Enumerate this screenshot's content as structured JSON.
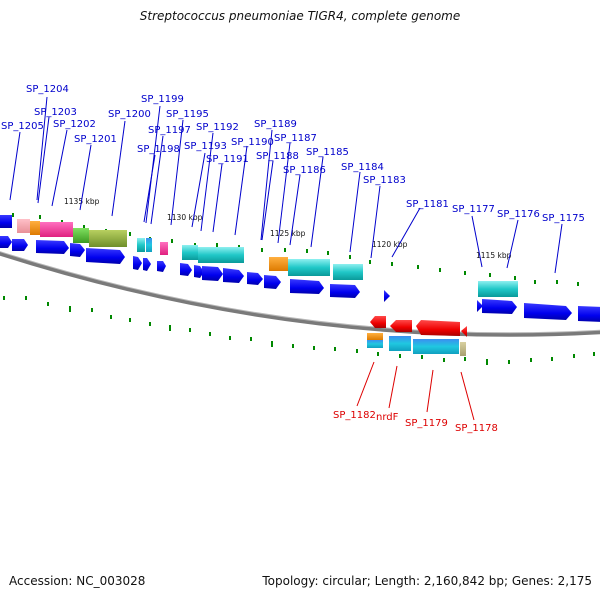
{
  "title": "Streptococcus pneumoniae TIGR4, complete genome",
  "footer": {
    "accession": "Accession: NC_003028",
    "summary": "Topology: circular; Length: 2,160,842 bp; Genes: 2,175"
  },
  "tick_labels": [
    "1135 kbp",
    "1130 kbp",
    "1125 kbp",
    "1120 kbp",
    "1115 kbp"
  ],
  "forward_gene_labels": [
    "SP_1204",
    "SP_1203",
    "SP_1205",
    "SP_1202",
    "SP_1201",
    "SP_1200",
    "SP_1199",
    "SP_1195",
    "SP_1197",
    "SP_1198",
    "SP_1193",
    "SP_1192",
    "SP_1191",
    "SP_1190",
    "SP_1189",
    "SP_1187",
    "SP_1188",
    "SP_1185",
    "SP_1186",
    "SP_1184",
    "SP_1183",
    "SP_1181",
    "SP_1177",
    "SP_1176",
    "SP_1175"
  ],
  "reverse_gene_labels": [
    "SP_1182",
    "nrdF",
    "SP_1179",
    "SP_1178"
  ],
  "colors": {
    "forward_label": "#0000cc",
    "reverse_label": "#dd0000",
    "forward_arrow": "#0000ee",
    "reverse_arrow": "#ee0000",
    "backbone": "#808080",
    "tick": "#008800"
  }
}
